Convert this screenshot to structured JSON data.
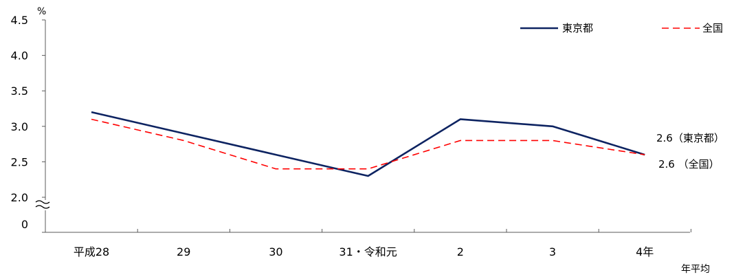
{
  "chart_data": {
    "type": "line",
    "ylabel": "%",
    "xlabel": "年平均",
    "categories": [
      "平成28",
      "29",
      "30",
      "31・令和元",
      "2",
      "3",
      "4年"
    ],
    "y_ticks": [
      "4.5",
      "4.0",
      "3.5",
      "3.0",
      "2.5",
      "2.0",
      "0"
    ],
    "ylim": [
      2.0,
      4.5
    ],
    "axis_break": true,
    "series": [
      {
        "name": "東京都",
        "values": [
          3.2,
          2.9,
          2.6,
          2.3,
          3.1,
          3.0,
          2.6
        ],
        "color": "#0d2361",
        "style": "solid"
      },
      {
        "name": "全国",
        "values": [
          3.1,
          2.8,
          2.4,
          2.4,
          2.8,
          2.8,
          2.6
        ],
        "color": "#ff0000",
        "style": "dashed"
      }
    ],
    "annotations": [
      "2.6（東京都）",
      "2.6 （全国）"
    ],
    "legend_position": "top-right",
    "grid": false
  }
}
